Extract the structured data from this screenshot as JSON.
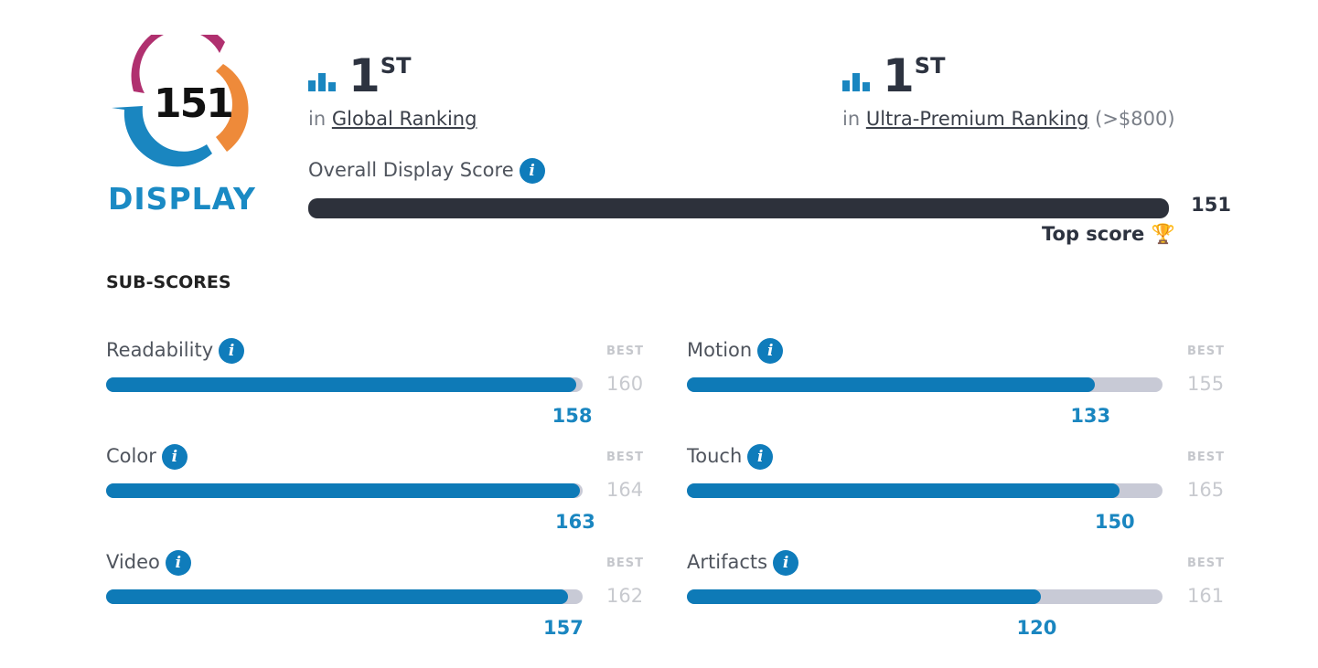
{
  "logo": {
    "score": "151",
    "category": "DISPLAY"
  },
  "rankings": [
    {
      "rank": "1",
      "suffix": "ST",
      "prefix": "in",
      "link": "Global Ranking",
      "extra": ""
    },
    {
      "rank": "1",
      "suffix": "ST",
      "prefix": "in",
      "link": "Ultra-Premium Ranking",
      "extra": "(>$800)"
    }
  ],
  "overall": {
    "label": "Overall Display Score",
    "value": "151",
    "fraction": 1.0,
    "top_label": "Top score",
    "trophy": "🏆"
  },
  "subscores_title": "SUB-SCORES",
  "best_label": "BEST",
  "info_glyph": "i",
  "subscores": [
    {
      "label": "Readability",
      "value": "158",
      "best": "160",
      "fraction": 0.9875
    },
    {
      "label": "Motion",
      "value": "133",
      "best": "155",
      "fraction": 0.858
    },
    {
      "label": "Color",
      "value": "163",
      "best": "164",
      "fraction": 0.994
    },
    {
      "label": "Touch",
      "value": "150",
      "best": "165",
      "fraction": 0.909
    },
    {
      "label": "Video",
      "value": "157",
      "best": "162",
      "fraction": 0.969
    },
    {
      "label": "Artifacts",
      "value": "120",
      "best": "161",
      "fraction": 0.745
    }
  ]
}
